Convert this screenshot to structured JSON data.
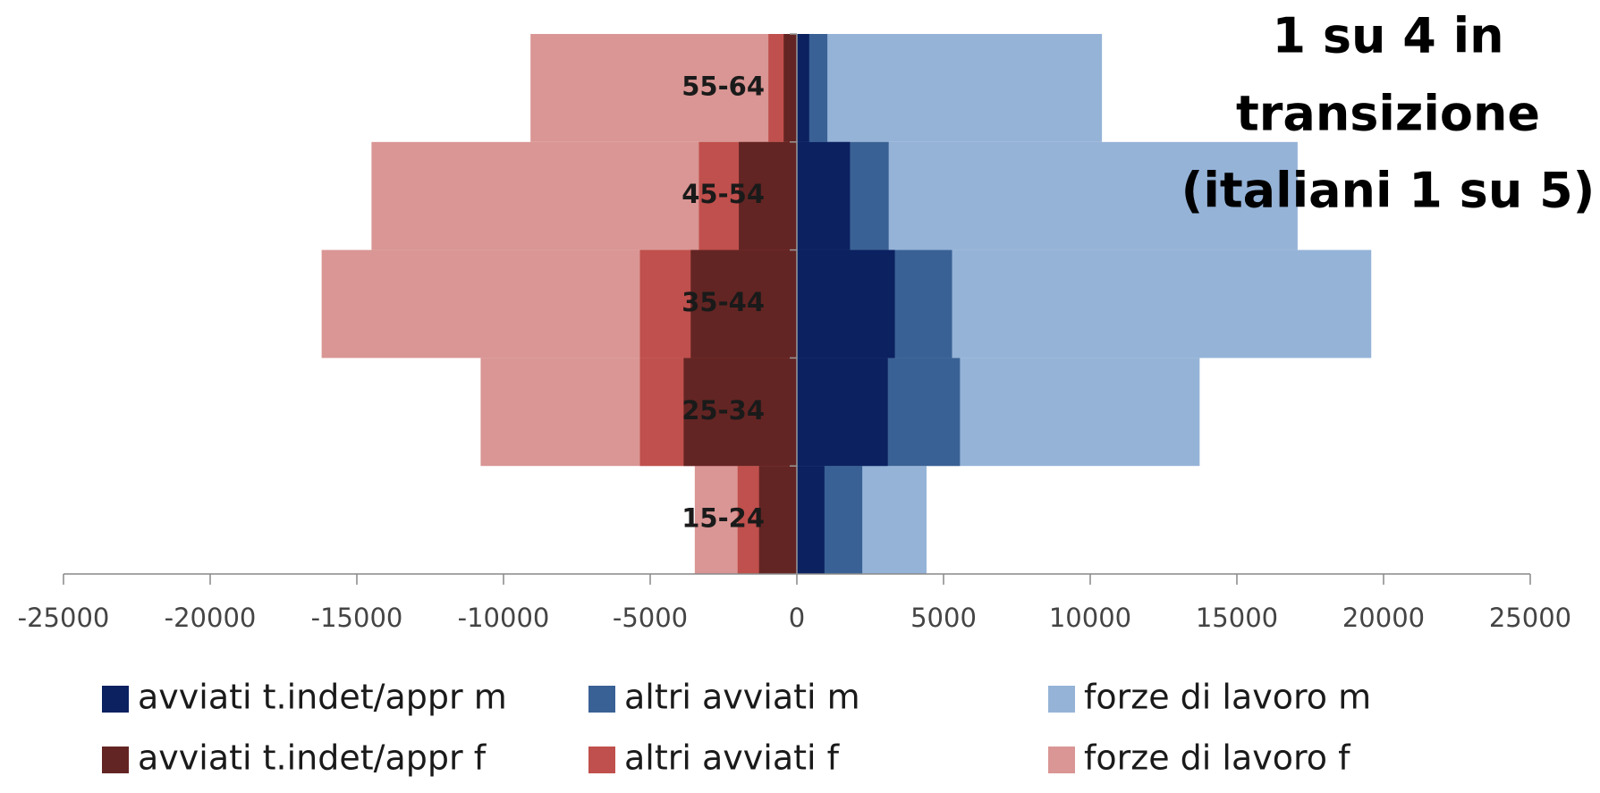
{
  "chart_data": {
    "type": "bar",
    "orientation": "horizontal",
    "annotation": [
      "1 su 4 in",
      "transizione",
      "(italiani 1 su 5)"
    ],
    "categories": [
      "15-24",
      "25-34",
      "35-44",
      "45-54",
      "55-64"
    ],
    "series": [
      {
        "name": "avviati t.indet/appr m",
        "color": "#0b2160",
        "values": [
          940,
          3100,
          3340,
          1810,
          420
        ]
      },
      {
        "name": "altri avviati m",
        "color": "#3a6195",
        "values": [
          2230,
          5560,
          5290,
          3130,
          1040
        ]
      },
      {
        "name": "forze di lavoro m",
        "color": "#95b3d7",
        "values": [
          4420,
          13730,
          19580,
          17070,
          10400
        ]
      },
      {
        "name": "avviati t.indet/appr f",
        "color": "#632523",
        "values": [
          -1290,
          -3860,
          -3620,
          -1980,
          -450
        ]
      },
      {
        "name": "altri avviati f",
        "color": "#c0504d",
        "values": [
          -2020,
          -5350,
          -5350,
          -3340,
          -970
        ]
      },
      {
        "name": "forze di lavoro f",
        "color": "#d99694",
        "values": [
          -3480,
          -10780,
          -16200,
          -14500,
          -9080
        ]
      }
    ],
    "xlim": [
      -25000,
      25000
    ],
    "xticks": [
      -25000,
      -20000,
      -15000,
      -10000,
      -5000,
      0,
      5000,
      10000,
      15000,
      20000,
      25000
    ],
    "legend": "bottom"
  }
}
